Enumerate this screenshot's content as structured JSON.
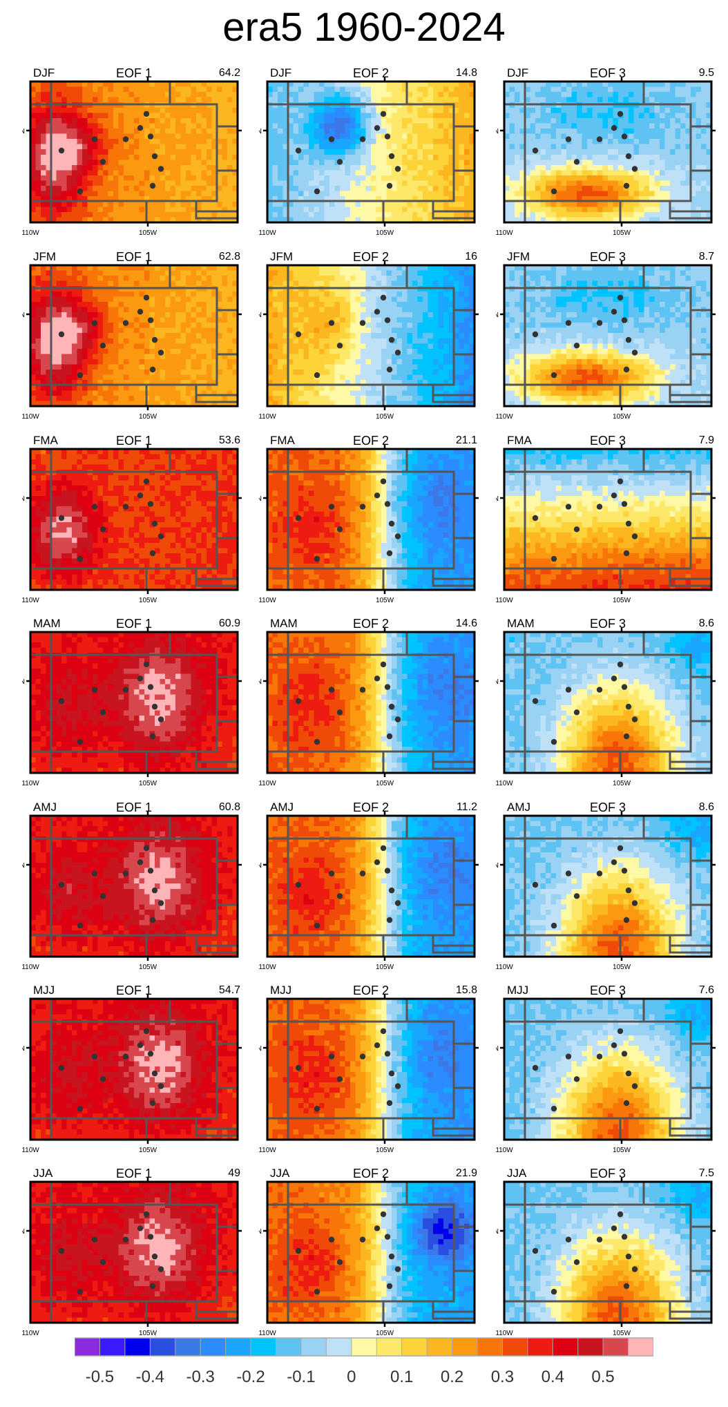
{
  "title": "era5 1960-2024",
  "map_ticks": {
    "lon_left": "110W",
    "lon_mid": "105W",
    "lat_tick": "40N"
  },
  "panels": [
    {
      "season": "DJF",
      "eof": "EOF 1",
      "pct": "64.2",
      "pattern": "e1_winter"
    },
    {
      "season": "DJF",
      "eof": "EOF 2",
      "pct": "14.8",
      "pattern": "e2_winter"
    },
    {
      "season": "DJF",
      "eof": "EOF 3",
      "pct": "9.5",
      "pattern": "e3_winter"
    },
    {
      "season": "JFM",
      "eof": "EOF 1",
      "pct": "62.8",
      "pattern": "e1_winter"
    },
    {
      "season": "JFM",
      "eof": "EOF 2",
      "pct": "16",
      "pattern": "e2_jfm"
    },
    {
      "season": "JFM",
      "eof": "EOF 3",
      "pct": "8.7",
      "pattern": "e3_winter"
    },
    {
      "season": "FMA",
      "eof": "EOF 1",
      "pct": "53.6",
      "pattern": "e1_spring"
    },
    {
      "season": "FMA",
      "eof": "EOF 2",
      "pct": "21.1",
      "pattern": "e2_dipole"
    },
    {
      "season": "FMA",
      "eof": "EOF 3",
      "pct": "7.9",
      "pattern": "e3_spring"
    },
    {
      "season": "MAM",
      "eof": "EOF 1",
      "pct": "60.9",
      "pattern": "e1_strong"
    },
    {
      "season": "MAM",
      "eof": "EOF 2",
      "pct": "14.6",
      "pattern": "e2_dipole"
    },
    {
      "season": "MAM",
      "eof": "EOF 3",
      "pct": "8.6",
      "pattern": "e3_summer"
    },
    {
      "season": "AMJ",
      "eof": "EOF 1",
      "pct": "60.8",
      "pattern": "e1_strong"
    },
    {
      "season": "AMJ",
      "eof": "EOF 2",
      "pct": "11.2",
      "pattern": "e2_dipole"
    },
    {
      "season": "AMJ",
      "eof": "EOF 3",
      "pct": "8.6",
      "pattern": "e3_summer"
    },
    {
      "season": "MJJ",
      "eof": "EOF 1",
      "pct": "54.7",
      "pattern": "e1_strong"
    },
    {
      "season": "MJJ",
      "eof": "EOF 2",
      "pct": "15.8",
      "pattern": "e2_dipole"
    },
    {
      "season": "MJJ",
      "eof": "EOF 3",
      "pct": "7.6",
      "pattern": "e3_summer"
    },
    {
      "season": "JJA",
      "eof": "EOF 1",
      "pct": "49",
      "pattern": "e1_strong"
    },
    {
      "season": "JJA",
      "eof": "EOF 2",
      "pct": "21.9",
      "pattern": "e2_dipole_deep"
    },
    {
      "season": "JJA",
      "eof": "EOF 3",
      "pct": "7.5",
      "pattern": "e3_summer"
    }
  ],
  "chart_data": {
    "type": "heatmap",
    "title": "era5 1960-2024",
    "rows": [
      "DJF",
      "JFM",
      "FMA",
      "MAM",
      "AMJ",
      "MJJ",
      "JJA"
    ],
    "columns": [
      "EOF 1",
      "EOF 2",
      "EOF 3"
    ],
    "explained_variance": [
      [
        64.2,
        14.8,
        9.5
      ],
      [
        62.8,
        16,
        8.7
      ],
      [
        53.6,
        21.1,
        7.9
      ],
      [
        60.9,
        14.6,
        8.6
      ],
      [
        60.8,
        11.2,
        8.6
      ],
      [
        54.7,
        15.8,
        7.6
      ],
      [
        49,
        21.9,
        7.5
      ]
    ],
    "x_ticks": [
      "110W",
      "105W"
    ],
    "y_ticks": [
      "40N"
    ],
    "colorbar": {
      "ticks": [
        "-0.5",
        "-0.4",
        "-0.3",
        "-0.2",
        "-0.1",
        "0",
        "0.1",
        "0.2",
        "0.3",
        "0.4",
        "0.5"
      ],
      "colors": [
        "#8a2be2",
        "#3c1aff",
        "#0000ee",
        "#2a4fe0",
        "#3c78e8",
        "#2a8cff",
        "#18a6ff",
        "#00c2ff",
        "#5ec2f2",
        "#9ad2f4",
        "#bfe1f7",
        "#fff9a6",
        "#fde86a",
        "#fdd33a",
        "#fcb620",
        "#fb9a10",
        "#f87508",
        "#f04a08",
        "#ee1c10",
        "#dc0012",
        "#c8141e",
        "#d8464e",
        "#ffb4b8"
      ]
    }
  }
}
